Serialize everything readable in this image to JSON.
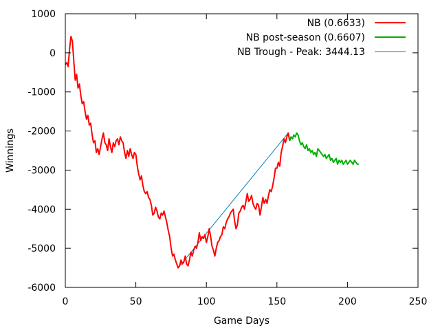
{
  "chart_data": {
    "type": "line",
    "title": "",
    "xlabel": "Game Days",
    "ylabel": "Winnings",
    "xlim": [
      0,
      250
    ],
    "ylim": [
      -6000,
      1000
    ],
    "x_ticks": [
      0,
      50,
      100,
      150,
      200,
      250
    ],
    "y_ticks": [
      1000,
      0,
      -1000,
      -2000,
      -3000,
      -4000,
      -5000,
      -6000
    ],
    "grid": false,
    "legend_position": "top-right",
    "series": [
      {
        "name": "NB (0.6633)",
        "color": "#ff0000",
        "x": [
          0,
          1,
          2,
          3,
          4,
          5,
          6,
          7,
          8,
          9,
          10,
          11,
          12,
          13,
          14,
          15,
          16,
          17,
          18,
          19,
          20,
          21,
          22,
          23,
          24,
          25,
          26,
          27,
          28,
          29,
          30,
          31,
          32,
          33,
          34,
          35,
          36,
          37,
          38,
          39,
          40,
          41,
          42,
          43,
          44,
          45,
          46,
          47,
          48,
          49,
          50,
          51,
          52,
          53,
          54,
          55,
          56,
          57,
          58,
          59,
          60,
          61,
          62,
          63,
          64,
          65,
          66,
          67,
          68,
          69,
          70,
          71,
          72,
          73,
          74,
          75,
          76,
          77,
          78,
          79,
          80,
          81,
          82,
          83,
          84,
          85,
          86,
          87,
          88,
          89,
          90,
          91,
          92,
          93,
          94,
          95,
          96,
          97,
          98,
          99,
          100,
          101,
          102,
          103,
          104,
          105,
          106,
          107,
          108,
          109,
          110,
          111,
          112,
          113,
          114,
          115,
          116,
          117,
          118,
          119,
          120,
          121,
          122,
          123,
          124,
          125,
          126,
          127,
          128,
          129,
          130,
          131,
          132,
          133,
          134,
          135,
          136,
          137,
          138,
          139,
          140,
          141,
          142,
          143,
          144,
          145,
          146,
          147,
          148,
          149,
          150,
          151,
          152,
          153,
          154,
          155,
          156,
          157,
          158,
          159
        ],
        "y": [
          -300,
          -250,
          -350,
          100,
          420,
          300,
          -200,
          -700,
          -550,
          -900,
          -800,
          -1100,
          -1300,
          -1250,
          -1500,
          -1700,
          -1600,
          -1850,
          -1800,
          -2100,
          -2300,
          -2250,
          -2550,
          -2450,
          -2600,
          -2400,
          -2200,
          -2050,
          -2300,
          -2350,
          -2500,
          -2200,
          -2400,
          -2550,
          -2300,
          -2400,
          -2250,
          -2200,
          -2350,
          -2150,
          -2250,
          -2300,
          -2550,
          -2700,
          -2500,
          -2650,
          -2450,
          -2600,
          -2700,
          -2550,
          -2600,
          -2900,
          -3100,
          -3250,
          -3150,
          -3400,
          -3550,
          -3600,
          -3550,
          -3700,
          -3750,
          -3900,
          -4150,
          -4100,
          -3950,
          -4050,
          -4200,
          -4250,
          -4100,
          -4150,
          -4050,
          -4200,
          -4350,
          -4550,
          -4700,
          -5000,
          -5200,
          -5150,
          -5300,
          -5400,
          -5500,
          -5450,
          -5300,
          -5400,
          -5350,
          -5200,
          -5400,
          -5450,
          -5300,
          -5100,
          -5200,
          -5050,
          -4950,
          -5000,
          -4850,
          -4600,
          -4800,
          -4700,
          -4750,
          -4650,
          -4850,
          -4700,
          -4500,
          -4700,
          -4950,
          -5050,
          -5200,
          -5000,
          -4850,
          -4800,
          -4700,
          -4650,
          -4450,
          -4500,
          -4350,
          -4250,
          -4200,
          -4100,
          -4050,
          -4000,
          -4300,
          -4500,
          -4400,
          -4100,
          -4050,
          -3950,
          -3900,
          -4000,
          -3800,
          -3600,
          -3800,
          -3750,
          -3650,
          -3850,
          -3950,
          -4000,
          -3850,
          -3900,
          -4150,
          -3950,
          -3700,
          -3850,
          -3750,
          -3850,
          -3650,
          -3500,
          -3550,
          -3400,
          -3200,
          -2950,
          -2950,
          -2800,
          -2900,
          -2550,
          -2400,
          -2200,
          -2300,
          -2150,
          -2050,
          -2250
        ],
        "line_width": 2
      },
      {
        "name": "NB post-season (0.6607)",
        "color": "#00b000",
        "x": [
          159,
          160,
          161,
          162,
          163,
          164,
          165,
          166,
          167,
          168,
          169,
          170,
          171,
          172,
          173,
          174,
          175,
          176,
          177,
          178,
          179,
          180,
          181,
          182,
          183,
          184,
          185,
          186,
          187,
          188,
          189,
          190,
          191,
          192,
          193,
          194,
          195,
          196,
          197,
          198,
          199,
          200,
          201,
          202,
          203,
          204,
          205,
          206,
          207,
          208
        ],
        "y": [
          -2250,
          -2150,
          -2200,
          -2100,
          -2150,
          -2050,
          -2100,
          -2250,
          -2350,
          -2300,
          -2400,
          -2450,
          -2350,
          -2500,
          -2450,
          -2550,
          -2500,
          -2600,
          -2550,
          -2650,
          -2450,
          -2500,
          -2550,
          -2600,
          -2650,
          -2600,
          -2700,
          -2650,
          -2600,
          -2750,
          -2700,
          -2800,
          -2750,
          -2700,
          -2850,
          -2750,
          -2800,
          -2750,
          -2850,
          -2800,
          -2750,
          -2850,
          -2800,
          -2750,
          -2800,
          -2850,
          -2750,
          -2800,
          -2850,
          -2850
        ],
        "line_width": 2
      },
      {
        "name": "NB Trough - Peak: 3444.13",
        "color": "#0080c0",
        "x": [
          80,
          158
        ],
        "y": [
          -5500,
          -2050
        ],
        "line_width": 1
      }
    ]
  }
}
